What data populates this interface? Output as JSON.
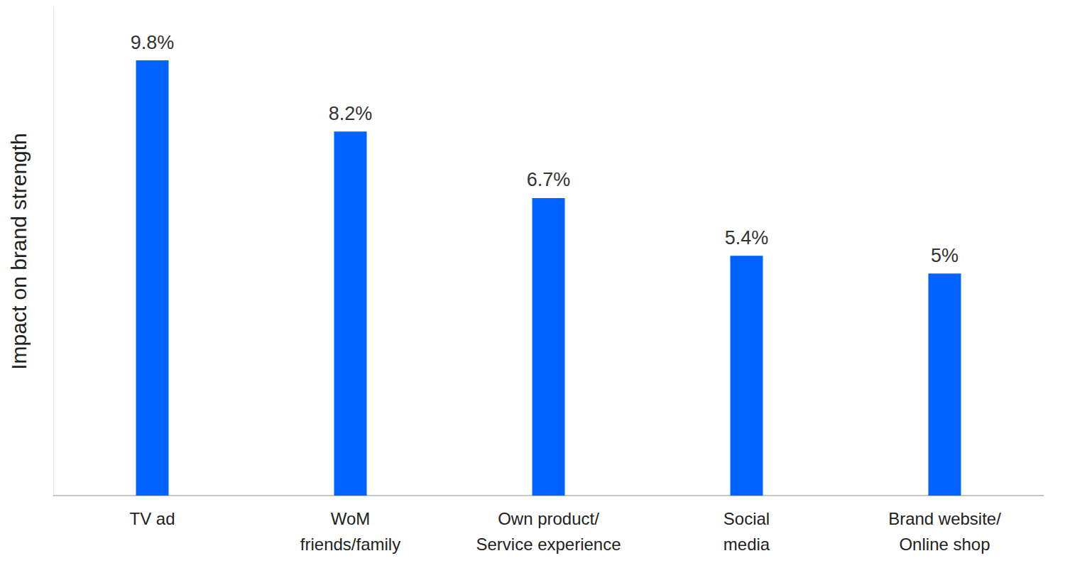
{
  "chart_data": {
    "type": "bar",
    "y_label": "Impact on brand strength",
    "categories": [
      "TV ad",
      "WoM\nfriends/family",
      "Own product/\nService experience",
      "Social\nmedia",
      "Brand website/\nOnline shop"
    ],
    "values": [
      9.8,
      8.2,
      6.7,
      5.4,
      5
    ],
    "value_labels": [
      "9.8%",
      "8.2%",
      "6.7%",
      "5.4%",
      "5%"
    ],
    "color": "#0062ff",
    "ylim": [
      0,
      11
    ],
    "grid": false,
    "data_labels": true,
    "tick_labels": "x"
  }
}
